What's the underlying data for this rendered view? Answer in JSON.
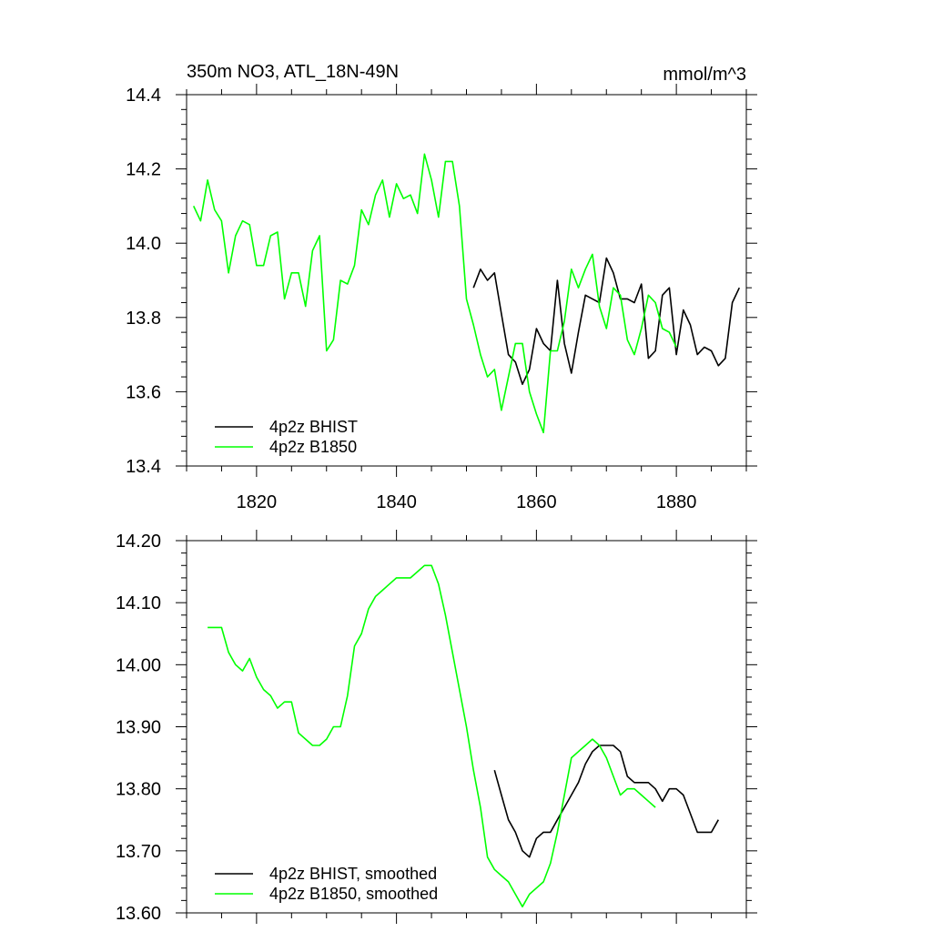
{
  "chart_data": [
    {
      "type": "line",
      "title": "350m NO3, ATL_18N-49N",
      "units": "mmol/m^3",
      "xlim": [
        1810,
        1890
      ],
      "ylim": [
        13.4,
        14.4
      ],
      "xticks": [
        1820,
        1840,
        1860,
        1880
      ],
      "xtick_labels": [
        "1820",
        "1840",
        "1860",
        "1880"
      ],
      "yticks": [
        13.4,
        13.6,
        13.8,
        14.0,
        14.2,
        14.4
      ],
      "ytick_labels": [
        "13.4",
        "13.6",
        "13.8",
        "14.0",
        "14.2",
        "14.4"
      ],
      "grid": false,
      "legend_position": "bottom-left",
      "series": [
        {
          "name": "4p2z BHIST",
          "color": "#000000",
          "x": [
            1851,
            1852,
            1853,
            1854,
            1855,
            1856,
            1857,
            1858,
            1859,
            1860,
            1861,
            1862,
            1863,
            1864,
            1865,
            1866,
            1867,
            1868,
            1869,
            1870,
            1871,
            1872,
            1873,
            1874,
            1875,
            1876,
            1877,
            1878,
            1879,
            1880,
            1881,
            1882,
            1883,
            1884,
            1885,
            1886,
            1887,
            1888,
            1889
          ],
          "y": [
            13.88,
            13.93,
            13.9,
            13.92,
            13.81,
            13.7,
            13.68,
            13.62,
            13.66,
            13.77,
            13.73,
            13.71,
            13.9,
            13.73,
            13.65,
            13.76,
            13.86,
            13.85,
            13.84,
            13.96,
            13.92,
            13.85,
            13.85,
            13.84,
            13.89,
            13.69,
            13.71,
            13.86,
            13.88,
            13.7,
            13.82,
            13.78,
            13.7,
            13.72,
            13.71,
            13.67,
            13.69,
            13.84,
            13.88
          ]
        },
        {
          "name": "4p2z B1850",
          "color": "#00ff00",
          "x": [
            1811,
            1812,
            1813,
            1814,
            1815,
            1816,
            1817,
            1818,
            1819,
            1820,
            1821,
            1822,
            1823,
            1824,
            1825,
            1826,
            1827,
            1828,
            1829,
            1830,
            1831,
            1832,
            1833,
            1834,
            1835,
            1836,
            1837,
            1838,
            1839,
            1840,
            1841,
            1842,
            1843,
            1844,
            1845,
            1846,
            1847,
            1848,
            1849,
            1850,
            1851,
            1852,
            1853,
            1854,
            1855,
            1856,
            1857,
            1858,
            1859,
            1860,
            1861,
            1862,
            1863,
            1864,
            1865,
            1866,
            1867,
            1868,
            1869,
            1870,
            1871,
            1872,
            1873,
            1874,
            1875,
            1876,
            1877,
            1878,
            1879,
            1880
          ],
          "y": [
            14.1,
            14.06,
            14.17,
            14.09,
            14.06,
            13.92,
            14.02,
            14.06,
            14.05,
            13.94,
            13.94,
            14.02,
            14.03,
            13.85,
            13.92,
            13.92,
            13.83,
            13.98,
            14.02,
            13.71,
            13.74,
            13.9,
            13.89,
            13.94,
            14.09,
            14.05,
            14.13,
            14.17,
            14.07,
            14.16,
            14.12,
            14.13,
            14.08,
            14.24,
            14.17,
            14.07,
            14.22,
            14.22,
            14.1,
            13.85,
            13.78,
            13.7,
            13.64,
            13.66,
            13.55,
            13.64,
            13.73,
            13.73,
            13.6,
            13.54,
            13.49,
            13.71,
            13.71,
            13.79,
            13.93,
            13.88,
            13.93,
            13.97,
            13.83,
            13.77,
            13.88,
            13.86,
            13.74,
            13.7,
            13.77,
            13.86,
            13.84,
            13.77,
            13.76,
            13.72
          ]
        }
      ]
    },
    {
      "type": "line",
      "xlim": [
        1810,
        1890
      ],
      "ylim": [
        13.6,
        14.2
      ],
      "xticks": [
        1820,
        1840,
        1860,
        1880
      ],
      "xtick_labels": [],
      "yticks": [
        13.6,
        13.7,
        13.8,
        13.9,
        14.0,
        14.1,
        14.2
      ],
      "ytick_labels": [
        "13.60",
        "13.70",
        "13.80",
        "13.90",
        "14.00",
        "14.10",
        "14.20"
      ],
      "grid": false,
      "legend_position": "bottom-left",
      "series": [
        {
          "name": "4p2z BHIST, smoothed",
          "color": "#000000",
          "x": [
            1854,
            1855,
            1856,
            1857,
            1858,
            1859,
            1860,
            1861,
            1862,
            1863,
            1864,
            1865,
            1866,
            1867,
            1868,
            1869,
            1870,
            1871,
            1872,
            1873,
            1874,
            1875,
            1876,
            1877,
            1878,
            1879,
            1880,
            1881,
            1882,
            1883,
            1884,
            1885,
            1886
          ],
          "y": [
            13.83,
            13.79,
            13.75,
            13.73,
            13.7,
            13.69,
            13.72,
            13.73,
            13.73,
            13.75,
            13.77,
            13.79,
            13.81,
            13.84,
            13.86,
            13.87,
            13.87,
            13.87,
            13.86,
            13.82,
            13.81,
            13.81,
            13.81,
            13.8,
            13.78,
            13.8,
            13.8,
            13.79,
            13.76,
            13.73,
            13.73,
            13.73,
            13.75
          ]
        },
        {
          "name": "4p2z B1850, smoothed",
          "color": "#00ff00",
          "x": [
            1813,
            1814,
            1815,
            1816,
            1817,
            1818,
            1819,
            1820,
            1821,
            1822,
            1823,
            1824,
            1825,
            1826,
            1827,
            1828,
            1829,
            1830,
            1831,
            1832,
            1833,
            1834,
            1835,
            1836,
            1837,
            1838,
            1839,
            1840,
            1841,
            1842,
            1843,
            1844,
            1845,
            1846,
            1847,
            1848,
            1849,
            1850,
            1851,
            1852,
            1853,
            1854,
            1855,
            1856,
            1857,
            1858,
            1859,
            1860,
            1861,
            1862,
            1863,
            1864,
            1865,
            1866,
            1867,
            1868,
            1869,
            1870,
            1871,
            1872,
            1873,
            1874,
            1875,
            1876,
            1877
          ],
          "y": [
            14.06,
            14.06,
            14.06,
            14.02,
            14.0,
            13.99,
            14.01,
            13.98,
            13.96,
            13.95,
            13.93,
            13.94,
            13.94,
            13.89,
            13.88,
            13.87,
            13.87,
            13.88,
            13.9,
            13.9,
            13.95,
            14.03,
            14.05,
            14.09,
            14.11,
            14.12,
            14.13,
            14.14,
            14.14,
            14.14,
            14.15,
            14.16,
            14.16,
            14.13,
            14.08,
            14.02,
            13.96,
            13.9,
            13.83,
            13.77,
            13.69,
            13.67,
            13.66,
            13.65,
            13.63,
            13.61,
            13.63,
            13.64,
            13.65,
            13.68,
            13.73,
            13.79,
            13.85,
            13.86,
            13.87,
            13.88,
            13.87,
            13.85,
            13.82,
            13.79,
            13.8,
            13.8,
            13.79,
            13.78,
            13.77
          ]
        }
      ]
    }
  ]
}
